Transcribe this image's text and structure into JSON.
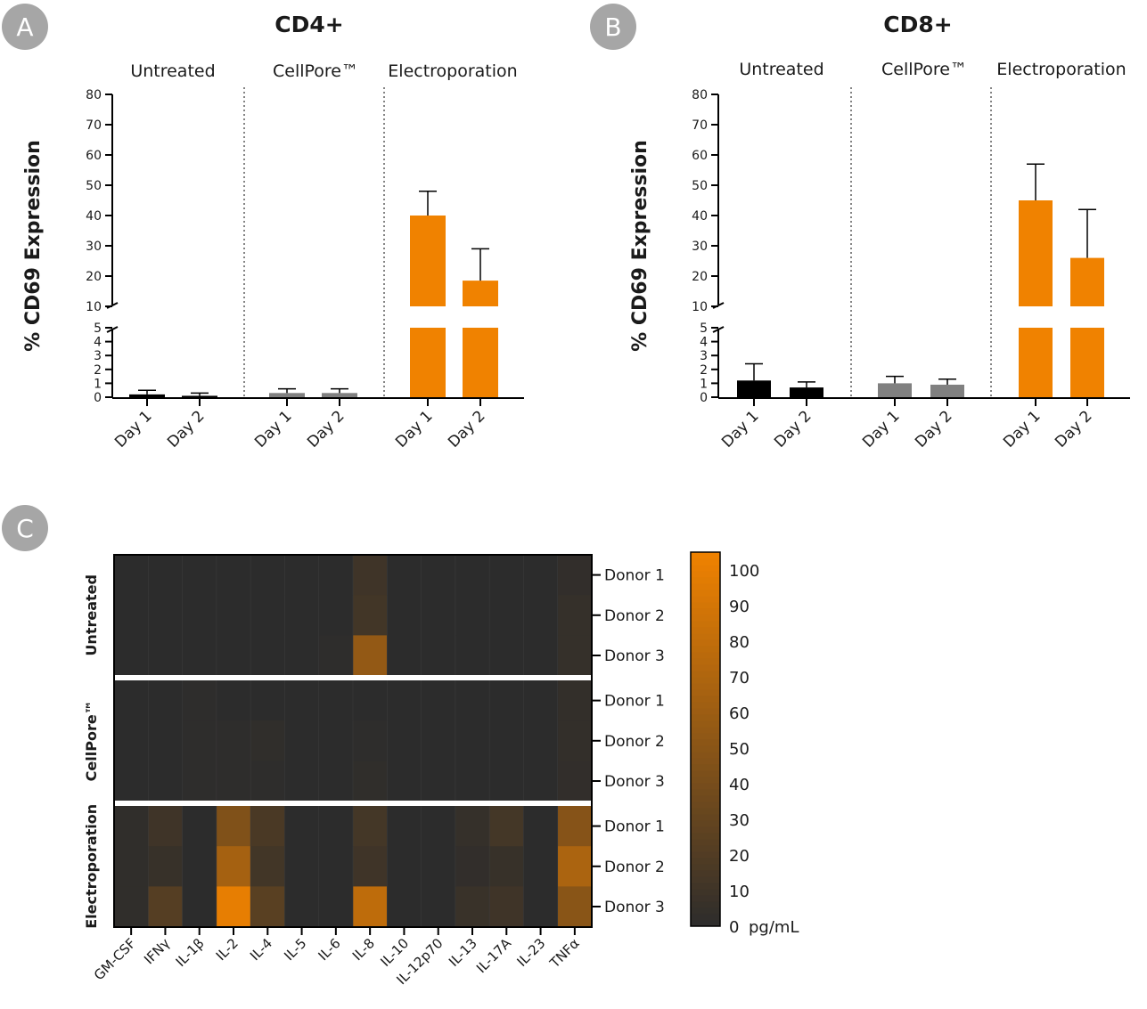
{
  "colors": {
    "untreated": "#000000",
    "cellpore": "#808080",
    "electroporation": "#f08200",
    "heat_low": "#2c2c2c",
    "heat_high": "#f08200",
    "badge": "#a6a6a6"
  },
  "chart_data": [
    {
      "id": "A",
      "type": "bar",
      "badge": "A",
      "title": "CD4+",
      "ylabel": "% CD69 Expression",
      "ylim": [
        0,
        80
      ],
      "y_break": [
        5,
        10
      ],
      "yticks": [
        "0",
        "1",
        "2",
        "3",
        "4",
        "5",
        "10",
        "20",
        "30",
        "40",
        "50",
        "60",
        "70",
        "80"
      ],
      "groups": [
        {
          "name": "Untreated",
          "color_key": "untreated",
          "categories": [
            "Day 1",
            "Day 2"
          ],
          "values": [
            0.2,
            0.1
          ],
          "errors": [
            0.5,
            0.3
          ]
        },
        {
          "name": "CellPore™",
          "color_key": "cellpore",
          "categories": [
            "Day 1",
            "Day 2"
          ],
          "values": [
            0.3,
            0.3
          ],
          "errors": [
            0.6,
            0.6
          ]
        },
        {
          "name": "Electroporation",
          "color_key": "electroporation",
          "categories": [
            "Day 1",
            "Day 2"
          ],
          "values": [
            40,
            18.5
          ],
          "errors": [
            48,
            29
          ]
        }
      ]
    },
    {
      "id": "B",
      "type": "bar",
      "badge": "B",
      "title": "CD8+",
      "ylabel": "% CD69 Expression",
      "ylim": [
        0,
        80
      ],
      "y_break": [
        5,
        10
      ],
      "yticks": [
        "0",
        "1",
        "2",
        "3",
        "4",
        "5",
        "10",
        "20",
        "30",
        "40",
        "50",
        "60",
        "70",
        "80"
      ],
      "groups": [
        {
          "name": "Untreated",
          "color_key": "untreated",
          "categories": [
            "Day 1",
            "Day 2"
          ],
          "values": [
            1.2,
            0.7
          ],
          "errors": [
            2.4,
            1.1
          ]
        },
        {
          "name": "CellPore™",
          "color_key": "cellpore",
          "categories": [
            "Day 1",
            "Day 2"
          ],
          "values": [
            1.0,
            0.9
          ],
          "errors": [
            1.5,
            1.3
          ]
        },
        {
          "name": "Electroporation",
          "color_key": "electroporation",
          "categories": [
            "Day 1",
            "Day 2"
          ],
          "values": [
            45,
            26
          ],
          "errors": [
            57,
            42
          ]
        }
      ]
    },
    {
      "id": "C",
      "type": "heatmap",
      "badge": "C",
      "columns": [
        "GM-CSF",
        "IFNγ",
        "IL-1β",
        "IL-2",
        "IL-4",
        "IL-5",
        "IL-6",
        "IL-8",
        "IL-10",
        "IL-12p70",
        "IL-13",
        "IL-17A",
        "IL-23",
        "TNFα"
      ],
      "groups": [
        {
          "name": "Untreated",
          "rows": [
            {
              "label": "Donor 1",
              "values": [
                0,
                0,
                0,
                0,
                0,
                0,
                0,
                10,
                0,
                0,
                0,
                0,
                0,
                3
              ]
            },
            {
              "label": "Donor 2",
              "values": [
                0,
                0,
                0,
                0,
                0,
                0,
                0,
                12,
                0,
                0,
                0,
                0,
                0,
                5
              ]
            },
            {
              "label": "Donor 3",
              "values": [
                0,
                0,
                0,
                0,
                0,
                0,
                1,
                55,
                0,
                0,
                0,
                0,
                0,
                5
              ]
            }
          ]
        },
        {
          "name": "CellPore™",
          "rows": [
            {
              "label": "Donor 1",
              "values": [
                0,
                0,
                1,
                0,
                0,
                0,
                0,
                0,
                0,
                0,
                0,
                0,
                0,
                4
              ]
            },
            {
              "label": "Donor 2",
              "values": [
                0,
                0,
                1,
                1,
                2,
                0,
                0,
                1,
                0,
                0,
                0,
                0,
                0,
                4
              ]
            },
            {
              "label": "Donor 3",
              "values": [
                0,
                0,
                1,
                1,
                1,
                0,
                0,
                2,
                0,
                0,
                0,
                0,
                0,
                3
              ]
            }
          ]
        },
        {
          "name": "Electroporation",
          "rows": [
            {
              "label": "Donor 1",
              "values": [
                2,
                10,
                0,
                45,
                16,
                0,
                0,
                13,
                0,
                0,
                5,
                13,
                0,
                48
              ]
            },
            {
              "label": "Donor 2",
              "values": [
                2,
                6,
                0,
                65,
                12,
                0,
                0,
                10,
                0,
                0,
                3,
                6,
                0,
                68
              ]
            },
            {
              "label": "Donor 3",
              "values": [
                2,
                22,
                0,
                100,
                24,
                0,
                0,
                78,
                0,
                0,
                7,
                10,
                0,
                50
              ]
            }
          ]
        }
      ],
      "colorbar": {
        "min": 0,
        "max": 105,
        "ticks": [
          0,
          10,
          20,
          30,
          40,
          50,
          60,
          70,
          80,
          90,
          100
        ],
        "unit": "pg/mL"
      }
    }
  ]
}
